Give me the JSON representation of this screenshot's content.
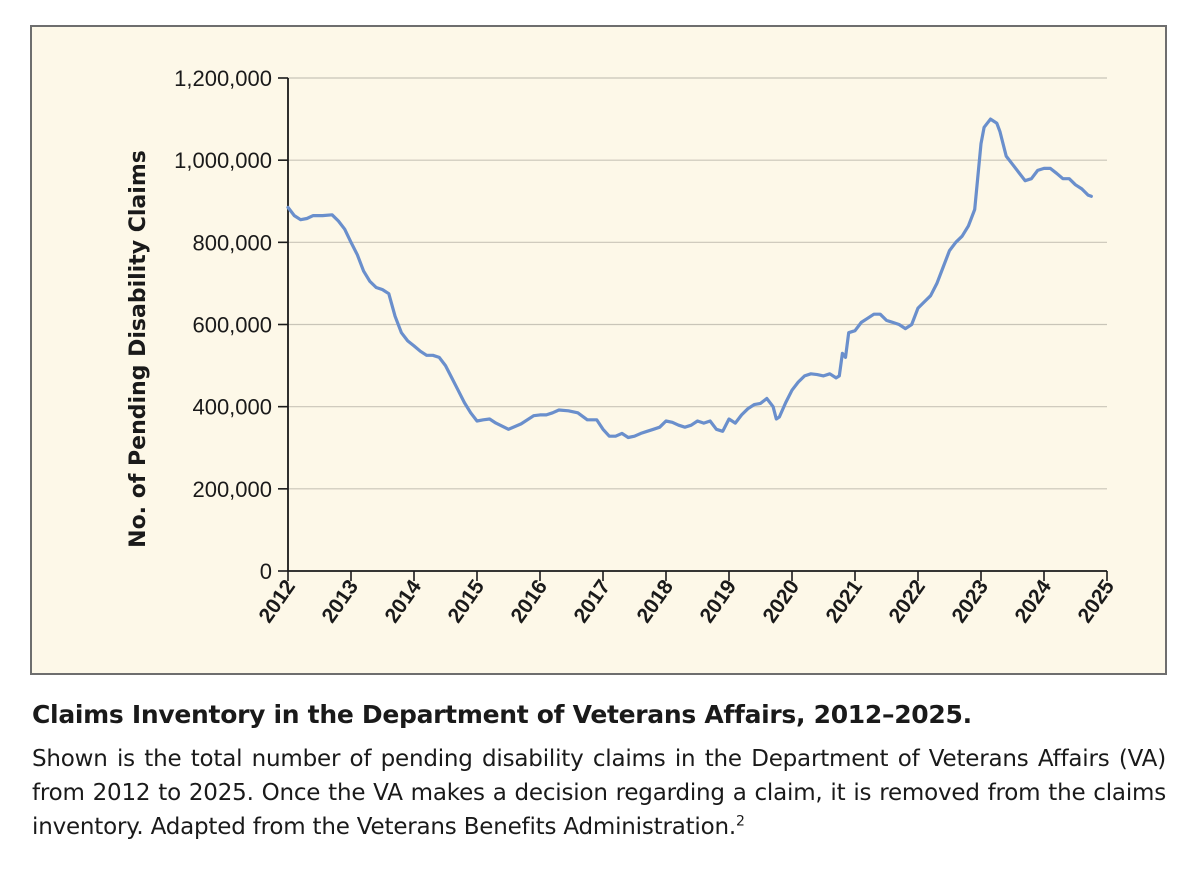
{
  "caption": {
    "title": "Claims Inventory in the Department of Veterans Affairs, 2012–2025.",
    "text": "Shown is the total number of pending disability claims in the Department of Veterans Affairs (VA) from 2012 to 2025. Once the VA makes a decision regarding a claim, it is removed from the claims inventory. Adapted from the Veterans Benefits Administration.",
    "reference_mark": "2"
  },
  "chart_data": {
    "type": "line",
    "title": "",
    "xlabel": "",
    "ylabel": "No. of Pending Disability Claims",
    "xlim": [
      2012,
      2025
    ],
    "ylim": [
      0,
      1200000
    ],
    "x_ticks": [
      2012,
      2013,
      2014,
      2015,
      2016,
      2017,
      2018,
      2019,
      2020,
      2021,
      2022,
      2023,
      2024,
      2025
    ],
    "x_tick_labels": [
      "2012",
      "2013",
      "2014",
      "2015",
      "2016",
      "2017",
      "2018",
      "2019",
      "2020",
      "2021",
      "2022",
      "2023",
      "2024",
      "2025"
    ],
    "y_ticks": [
      0,
      200000,
      400000,
      600000,
      800000,
      1000000,
      1200000
    ],
    "y_tick_labels": [
      "0",
      "200,000",
      "400,000",
      "600,000",
      "800,000",
      "1,000,000",
      "1,200,000"
    ],
    "grid": "horizontal",
    "line_color": "#6a8fcc",
    "series": [
      {
        "x": [
          2012.0,
          2012.1,
          2012.2,
          2012.3,
          2012.4,
          2012.55,
          2012.7,
          2012.8,
          2012.9,
          2013.0,
          2013.1,
          2013.2,
          2013.3,
          2013.4,
          2013.5,
          2013.6,
          2013.7,
          2013.8,
          2013.9,
          2014.0,
          2014.1,
          2014.2,
          2014.3,
          2014.4,
          2014.5,
          2014.6,
          2014.7,
          2014.8,
          2014.9,
          2015.0,
          2015.1,
          2015.2,
          2015.3,
          2015.5,
          2015.7,
          2015.9,
          2016.0,
          2016.1,
          2016.2,
          2016.3,
          2016.45,
          2016.6,
          2016.75,
          2016.9,
          2017.0,
          2017.1,
          2017.2,
          2017.3,
          2017.4,
          2017.5,
          2017.6,
          2017.7,
          2017.8,
          2017.9,
          2018.0,
          2018.1,
          2018.2,
          2018.3,
          2018.4,
          2018.5,
          2018.6,
          2018.7,
          2018.8,
          2018.9,
          2019.0,
          2019.1,
          2019.2,
          2019.3,
          2019.4,
          2019.5,
          2019.6,
          2019.7,
          2019.75,
          2019.8,
          2019.9,
          2020.0,
          2020.1,
          2020.2,
          2020.3,
          2020.4,
          2020.5,
          2020.6,
          2020.7,
          2020.75,
          2020.8,
          2020.85,
          2020.9,
          2021.0,
          2021.1,
          2021.2,
          2021.3,
          2021.4,
          2021.5,
          2021.6,
          2021.7,
          2021.8,
          2021.9,
          2022.0,
          2022.1,
          2022.2,
          2022.3,
          2022.4,
          2022.5,
          2022.6,
          2022.7,
          2022.8,
          2022.9,
          2023.0,
          2023.05,
          2023.1,
          2023.15,
          2023.2,
          2023.25,
          2023.3,
          2023.4,
          2023.5,
          2023.6,
          2023.7,
          2023.8,
          2023.9,
          2024.0,
          2024.1,
          2024.2,
          2024.3,
          2024.4,
          2024.5,
          2024.6,
          2024.7,
          2024.75
        ],
        "y": [
          885000,
          865000,
          855000,
          858000,
          865000,
          865000,
          867000,
          852000,
          832000,
          800000,
          770000,
          730000,
          705000,
          690000,
          685000,
          675000,
          620000,
          580000,
          560000,
          548000,
          535000,
          525000,
          525000,
          520000,
          500000,
          470000,
          440000,
          410000,
          385000,
          365000,
          368000,
          370000,
          360000,
          345000,
          358000,
          378000,
          380000,
          380000,
          385000,
          392000,
          390000,
          385000,
          368000,
          368000,
          345000,
          328000,
          328000,
          335000,
          325000,
          328000,
          335000,
          340000,
          345000,
          350000,
          365000,
          362000,
          355000,
          350000,
          355000,
          365000,
          360000,
          365000,
          345000,
          340000,
          370000,
          360000,
          380000,
          395000,
          405000,
          408000,
          420000,
          400000,
          370000,
          375000,
          410000,
          440000,
          460000,
          475000,
          480000,
          478000,
          475000,
          480000,
          470000,
          475000,
          530000,
          520000,
          580000,
          585000,
          605000,
          615000,
          625000,
          625000,
          610000,
          605000,
          600000,
          590000,
          600000,
          640000,
          655000,
          670000,
          700000,
          740000,
          780000,
          800000,
          815000,
          840000,
          880000,
          1040000,
          1080000,
          1090000,
          1100000,
          1095000,
          1090000,
          1070000,
          1010000,
          990000,
          970000,
          950000,
          955000,
          975000,
          980000,
          980000,
          968000,
          955000,
          955000,
          940000,
          930000,
          915000,
          912000
        ]
      }
    ]
  }
}
